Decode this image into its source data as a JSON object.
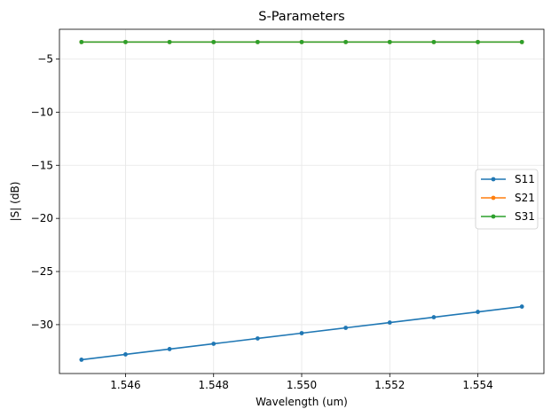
{
  "chart_data": {
    "type": "line",
    "title": "S-Parameters",
    "xlabel": "Wavelength (um)",
    "ylabel": "|S| (dB)",
    "x": [
      1.545,
      1.546,
      1.547,
      1.548,
      1.549,
      1.55,
      1.551,
      1.552,
      1.553,
      1.554,
      1.555
    ],
    "xlim": [
      1.5445,
      1.5555
    ],
    "ylim": [
      -34.6,
      -2.2
    ],
    "xticks": [
      1.546,
      1.548,
      1.55,
      1.552,
      1.554
    ],
    "xtick_labels": [
      "1.546",
      "1.548",
      "1.550",
      "1.552",
      "1.554"
    ],
    "yticks": [
      -30,
      -25,
      -20,
      -15,
      -10,
      -5
    ],
    "ytick_labels": [
      "−30",
      "−25",
      "−20",
      "−15",
      "−10",
      "−5"
    ],
    "grid": true,
    "legend_position": "center-right",
    "series": [
      {
        "name": "S11",
        "color": "#1f77b4",
        "values": [
          -33.3,
          -32.8,
          -32.3,
          -31.8,
          -31.3,
          -30.8,
          -30.3,
          -29.8,
          -29.3,
          -28.8,
          -28.3
        ]
      },
      {
        "name": "S21",
        "color": "#ff7f0e",
        "values": [
          -3.4,
          -3.4,
          -3.4,
          -3.4,
          -3.4,
          -3.4,
          -3.4,
          -3.4,
          -3.4,
          -3.4,
          -3.4
        ]
      },
      {
        "name": "S31",
        "color": "#2ca02c",
        "values": [
          -3.4,
          -3.4,
          -3.4,
          -3.4,
          -3.4,
          -3.4,
          -3.4,
          -3.4,
          -3.4,
          -3.4,
          -3.4
        ]
      }
    ]
  }
}
